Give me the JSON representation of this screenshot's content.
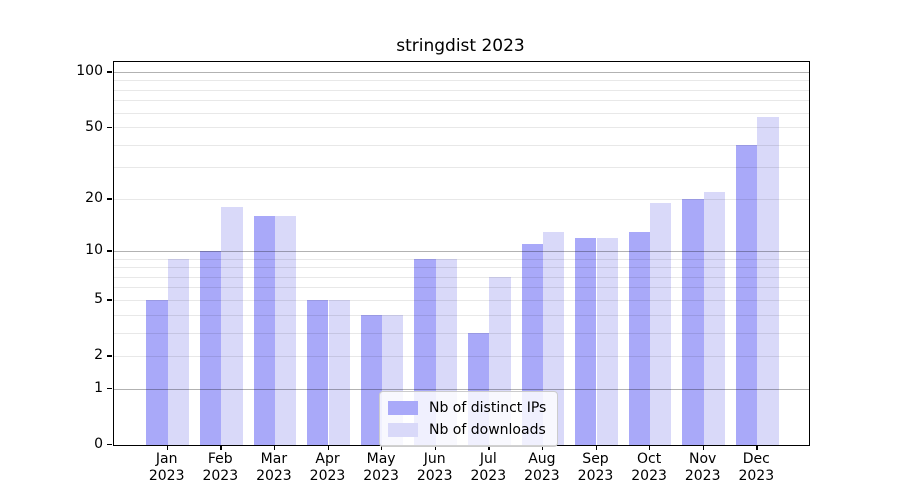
{
  "chart_data": {
    "type": "bar",
    "title": "stringdist 2023",
    "x_categories": [
      "Jan",
      "Feb",
      "Mar",
      "Apr",
      "May",
      "Jun",
      "Jul",
      "Aug",
      "Sep",
      "Oct",
      "Nov",
      "Dec"
    ],
    "x_sublabel": "2023",
    "series": [
      {
        "name": "Nb of distinct IPs",
        "color": "#a9a9f9",
        "values": [
          5,
          10,
          16,
          5,
          4,
          9,
          3,
          11,
          12,
          13,
          20,
          40
        ]
      },
      {
        "name": "Nb of downloads",
        "color": "#d9d9f9",
        "values": [
          9,
          18,
          16,
          5,
          4,
          9,
          7,
          13,
          12,
          19,
          22,
          57
        ]
      }
    ],
    "yscale": "log1p",
    "ylim": [
      0,
      114
    ],
    "y_ticks": [
      0,
      1,
      2,
      5,
      10,
      20,
      50,
      100
    ],
    "major_gridlines": [
      1,
      10,
      100
    ],
    "minor_gridlines": [
      2,
      3,
      4,
      5,
      6,
      7,
      8,
      9,
      20,
      30,
      40,
      50,
      60,
      70,
      80,
      90
    ],
    "grid": true,
    "legend_position": "bottom-center"
  }
}
